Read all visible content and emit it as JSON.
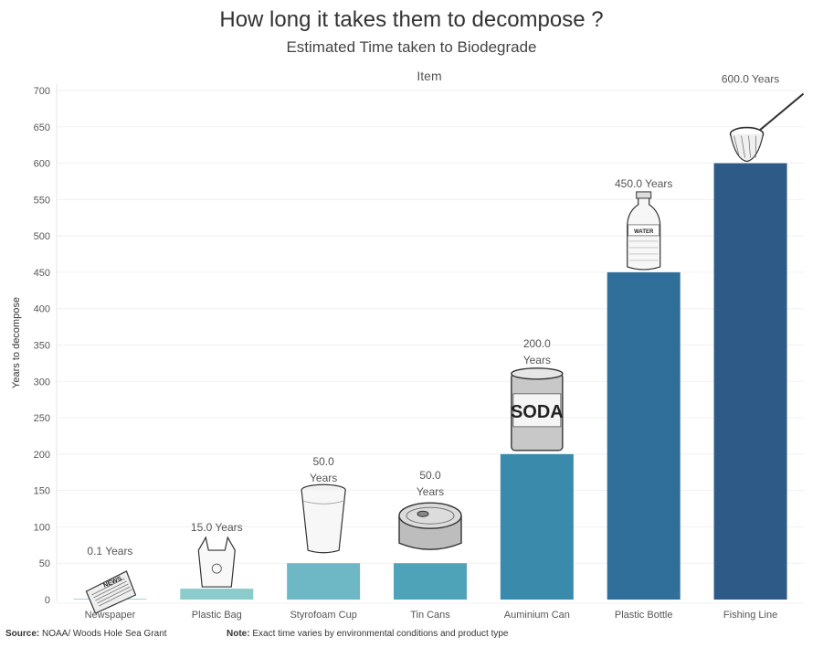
{
  "title": "How long it takes them to decompose ?",
  "subtitle": "Estimated Time taken to Biodegrade",
  "footer": {
    "source_label": "Source:",
    "source_text": "NOAA/ Woods Hole Sea Grant",
    "note_label": "Note:",
    "note_text": "Exact time varies by environmental conditions and product type"
  },
  "chart_data": {
    "type": "bar",
    "xlabel": "Item",
    "ylabel": "Years to decompose",
    "ylim": [
      0,
      700
    ],
    "yticks": [
      0,
      50,
      100,
      150,
      200,
      250,
      300,
      350,
      400,
      450,
      500,
      550,
      600,
      650,
      700
    ],
    "grid": true,
    "categories": [
      "Newspaper",
      "Plastic Bag",
      "Styrofoam Cup",
      "Tin Cans",
      "Auminium Can",
      "Plastic Bottle",
      "Fishing Line"
    ],
    "values": [
      0.1,
      15,
      50,
      50,
      200,
      450,
      600
    ],
    "data_labels": [
      "0.1 Years",
      "15.0 Years",
      "50.0 Years",
      "50.0 Years",
      "200.0 Years",
      "450.0 Years",
      "600.0 Years"
    ],
    "icons": [
      "newspaper-icon",
      "plastic-bag-icon",
      "styrofoam-cup-icon",
      "tin-can-icon",
      "soda-can-icon",
      "water-bottle-icon",
      "fishing-net-icon"
    ],
    "icon_text": {
      "newspaper": "NEWS",
      "soda": "SODA",
      "water": "WATER"
    },
    "colors": [
      "#a3d4d5",
      "#8ccbcc",
      "#6db8c4",
      "#4fa3b9",
      "#3a8bab",
      "#306f9a",
      "#2e5a87"
    ]
  }
}
